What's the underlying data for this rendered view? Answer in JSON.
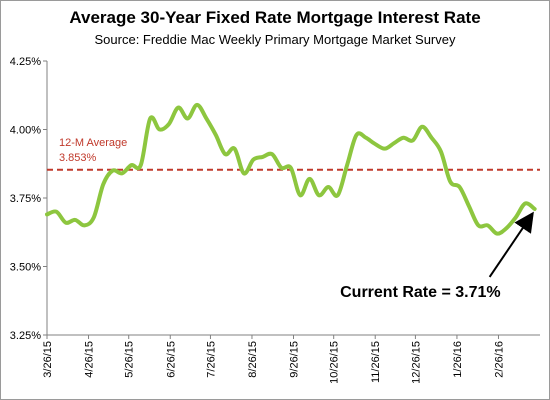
{
  "chart_data": {
    "type": "line",
    "title": "Average 30-Year Fixed Rate Mortgage Interest Rate",
    "subtitle": "Source: Freddie Mac Weekly Primary Mortgage Market Survey",
    "ylim": [
      3.25,
      4.25
    ],
    "yticks": [
      {
        "value": 3.25,
        "label": "3.25%"
      },
      {
        "value": 3.5,
        "label": "3.50%"
      },
      {
        "value": 3.75,
        "label": "3.75%"
      },
      {
        "value": 4.0,
        "label": "4.00%"
      },
      {
        "value": 4.25,
        "label": "4.25%"
      }
    ],
    "xticks": [
      "3/26/15",
      "4/26/15",
      "5/26/15",
      "6/26/15",
      "7/26/15",
      "8/26/15",
      "9/26/15",
      "10/26/15",
      "11/26/15",
      "12/26/15",
      "1/26/16",
      "2/26/16"
    ],
    "series": [
      {
        "color": "#8dc63f",
        "x": [
          "2015-03-26",
          "2015-04-02",
          "2015-04-09",
          "2015-04-16",
          "2015-04-23",
          "2015-04-30",
          "2015-05-07",
          "2015-05-14",
          "2015-05-21",
          "2015-05-28",
          "2015-06-04",
          "2015-06-11",
          "2015-06-18",
          "2015-06-25",
          "2015-07-02",
          "2015-07-09",
          "2015-07-16",
          "2015-07-23",
          "2015-07-30",
          "2015-08-06",
          "2015-08-13",
          "2015-08-20",
          "2015-08-27",
          "2015-09-03",
          "2015-09-10",
          "2015-09-17",
          "2015-09-24",
          "2015-10-01",
          "2015-10-08",
          "2015-10-15",
          "2015-10-22",
          "2015-10-29",
          "2015-11-05",
          "2015-11-12",
          "2015-11-19",
          "2015-11-25",
          "2015-12-03",
          "2015-12-10",
          "2015-12-17",
          "2015-12-24",
          "2015-12-31",
          "2016-01-07",
          "2016-01-14",
          "2016-01-21",
          "2016-01-28",
          "2016-02-04",
          "2016-02-11",
          "2016-02-18",
          "2016-02-25",
          "2016-03-03",
          "2016-03-10",
          "2016-03-17",
          "2016-03-24"
        ],
        "y": [
          3.69,
          3.7,
          3.66,
          3.67,
          3.65,
          3.68,
          3.8,
          3.85,
          3.84,
          3.87,
          3.87,
          4.04,
          4.0,
          4.02,
          4.08,
          4.04,
          4.09,
          4.04,
          3.98,
          3.91,
          3.93,
          3.84,
          3.89,
          3.9,
          3.91,
          3.86,
          3.86,
          3.76,
          3.82,
          3.76,
          3.79,
          3.76,
          3.87,
          3.98,
          3.97,
          3.95,
          3.93,
          3.95,
          3.97,
          3.96,
          4.01,
          3.97,
          3.92,
          3.81,
          3.79,
          3.72,
          3.65,
          3.65,
          3.62,
          3.64,
          3.68,
          3.73,
          3.71
        ]
      }
    ],
    "reference_line": {
      "value": 3.853,
      "color": "#c0392b",
      "label_line1": "12-M Average",
      "label_line2": "3.853%"
    },
    "annotation": {
      "text": "Current Rate = 3.71%",
      "arrow": true
    },
    "grid": false,
    "legend": "none"
  }
}
